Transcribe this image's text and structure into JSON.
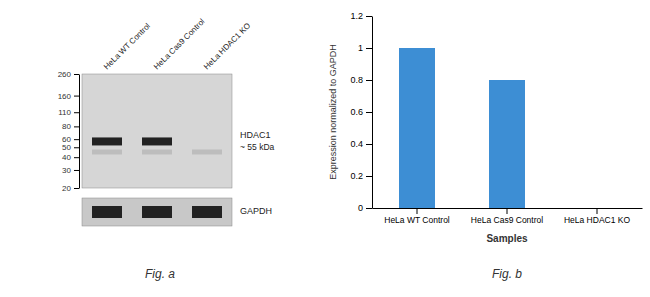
{
  "chart_data": [
    {
      "type": "blot",
      "title": "Fig. a",
      "categories": [
        "HeLa WT Control",
        "HeLa Cas9 Control",
        "HeLa HDAC1 KO"
      ],
      "log": "y",
      "ylim": [
        20,
        260
      ],
      "yticks": [
        260,
        160,
        110,
        80,
        60,
        50,
        40,
        30,
        20
      ],
      "series": [
        {
          "name": "HDAC1",
          "values": [
            57,
            57,
            null
          ]
        },
        {
          "values": [
            45,
            45,
            45
          ]
        },
        {
          "name": "GAPDH",
          "type": "loading_control"
        }
      ],
      "annotations": [
        "~ 55 kDa"
      ]
    },
    {
      "type": "bar",
      "title": "Fig. b",
      "categories": [
        "HeLa WT Control",
        "HeLa Cas9 Control",
        "HeLa HDAC1 KO"
      ],
      "values": [
        1.0,
        0.8,
        0.0
      ],
      "color": "#3d8ed4",
      "ylabel": "Expression normalized to GAPDH",
      "xlabel": "Samples",
      "ylim": [
        0,
        1.2
      ],
      "yticks": [
        0,
        0.2,
        0.4,
        0.6,
        0.8,
        1,
        1.2
      ]
    }
  ]
}
